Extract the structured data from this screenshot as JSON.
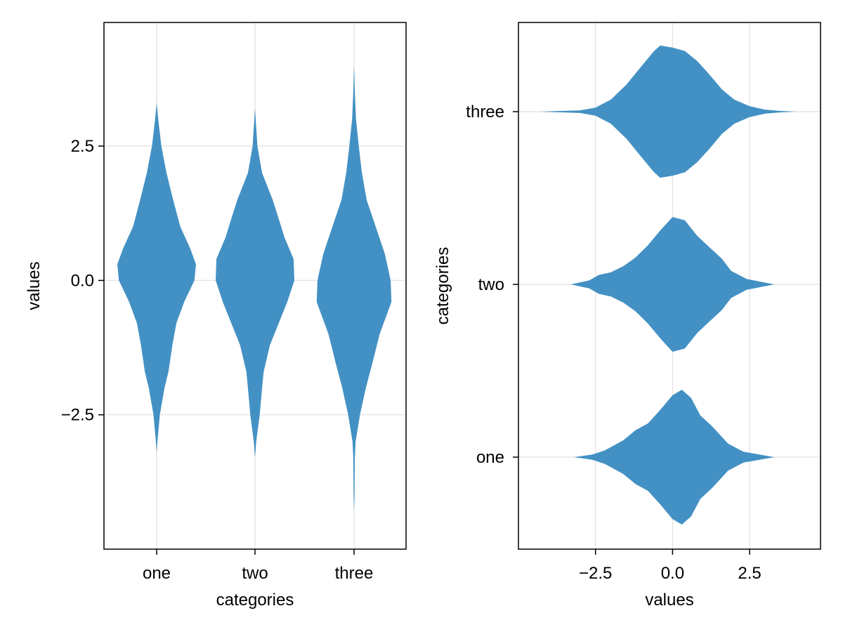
{
  "chart_data": [
    {
      "type": "violin",
      "orientation": "vertical",
      "categories": [
        "one",
        "two",
        "three"
      ],
      "xlabel": "categories",
      "ylabel": "values",
      "value_ticks": [
        -2.5,
        0.0,
        2.5
      ],
      "value_tick_labels": [
        "−2.5",
        "0.0",
        "2.5"
      ],
      "ylim": [
        -5.0,
        4.8
      ],
      "grid": true,
      "color": "#3f8fc3",
      "violins": [
        {
          "category": "one",
          "profile": [
            [
              -3.2,
              0.0
            ],
            [
              -3.0,
              0.02
            ],
            [
              -2.5,
              0.08
            ],
            [
              -2.0,
              0.2
            ],
            [
              -1.7,
              0.3
            ],
            [
              -1.2,
              0.4
            ],
            [
              -0.8,
              0.5
            ],
            [
              -0.4,
              0.7
            ],
            [
              0.0,
              0.96
            ],
            [
              0.3,
              1.0
            ],
            [
              0.6,
              0.85
            ],
            [
              1.0,
              0.6
            ],
            [
              1.5,
              0.42
            ],
            [
              2.0,
              0.25
            ],
            [
              2.5,
              0.12
            ],
            [
              3.0,
              0.04
            ],
            [
              3.3,
              0.0
            ]
          ]
        },
        {
          "category": "two",
          "profile": [
            [
              -3.3,
              0.0
            ],
            [
              -3.0,
              0.03
            ],
            [
              -2.5,
              0.12
            ],
            [
              -2.0,
              0.18
            ],
            [
              -1.7,
              0.22
            ],
            [
              -1.2,
              0.38
            ],
            [
              -0.8,
              0.6
            ],
            [
              -0.4,
              0.82
            ],
            [
              0.0,
              1.0
            ],
            [
              0.4,
              0.98
            ],
            [
              0.8,
              0.75
            ],
            [
              1.2,
              0.58
            ],
            [
              1.5,
              0.45
            ],
            [
              2.0,
              0.18
            ],
            [
              2.5,
              0.06
            ],
            [
              3.2,
              0.0
            ]
          ]
        },
        {
          "category": "three",
          "profile": [
            [
              -4.3,
              0.0
            ],
            [
              -4.0,
              0.01
            ],
            [
              -3.3,
              0.02
            ],
            [
              -3.0,
              0.04
            ],
            [
              -2.5,
              0.15
            ],
            [
              -2.0,
              0.3
            ],
            [
              -1.5,
              0.48
            ],
            [
              -1.0,
              0.65
            ],
            [
              -0.4,
              0.95
            ],
            [
              0.0,
              0.93
            ],
            [
              0.5,
              0.78
            ],
            [
              1.0,
              0.55
            ],
            [
              1.5,
              0.32
            ],
            [
              2.0,
              0.2
            ],
            [
              2.5,
              0.12
            ],
            [
              3.0,
              0.05
            ],
            [
              3.5,
              0.02
            ],
            [
              4.0,
              0.0
            ]
          ]
        }
      ]
    },
    {
      "type": "violin",
      "orientation": "horizontal",
      "categories": [
        "one",
        "two",
        "three"
      ],
      "xlabel": "values",
      "ylabel": "categories",
      "value_ticks": [
        -2.5,
        0.0,
        2.5
      ],
      "value_tick_labels": [
        "−2.5",
        "0.0",
        "2.5"
      ],
      "xlim": [
        -5.0,
        4.8
      ],
      "grid": true,
      "color": "#3f8fc3",
      "violins": [
        {
          "category": "one",
          "profile": [
            [
              -3.2,
              0.0
            ],
            [
              -2.6,
              0.04
            ],
            [
              -2.2,
              0.1
            ],
            [
              -1.6,
              0.25
            ],
            [
              -1.2,
              0.4
            ],
            [
              -0.8,
              0.5
            ],
            [
              -0.4,
              0.7
            ],
            [
              0.0,
              0.92
            ],
            [
              0.3,
              1.0
            ],
            [
              0.6,
              0.88
            ],
            [
              0.9,
              0.62
            ],
            [
              1.3,
              0.45
            ],
            [
              1.8,
              0.2
            ],
            [
              2.3,
              0.08
            ],
            [
              3.3,
              0.0
            ]
          ]
        },
        {
          "category": "two",
          "profile": [
            [
              -3.3,
              0.0
            ],
            [
              -2.7,
              0.06
            ],
            [
              -2.4,
              0.14
            ],
            [
              -2.0,
              0.18
            ],
            [
              -1.6,
              0.27
            ],
            [
              -1.2,
              0.4
            ],
            [
              -0.8,
              0.58
            ],
            [
              -0.4,
              0.8
            ],
            [
              0.0,
              1.0
            ],
            [
              0.4,
              0.95
            ],
            [
              0.8,
              0.72
            ],
            [
              1.2,
              0.55
            ],
            [
              1.6,
              0.38
            ],
            [
              1.9,
              0.2
            ],
            [
              2.4,
              0.08
            ],
            [
              3.3,
              0.0
            ]
          ]
        },
        {
          "category": "three",
          "profile": [
            [
              -4.3,
              0.0
            ],
            [
              -3.6,
              0.01
            ],
            [
              -3.0,
              0.02
            ],
            [
              -2.5,
              0.06
            ],
            [
              -2.0,
              0.18
            ],
            [
              -1.5,
              0.4
            ],
            [
              -1.0,
              0.68
            ],
            [
              -0.6,
              0.9
            ],
            [
              -0.4,
              0.98
            ],
            [
              0.0,
              0.95
            ],
            [
              0.4,
              0.9
            ],
            [
              0.8,
              0.75
            ],
            [
              1.2,
              0.55
            ],
            [
              1.6,
              0.33
            ],
            [
              2.0,
              0.18
            ],
            [
              2.5,
              0.08
            ],
            [
              3.0,
              0.03
            ],
            [
              3.5,
              0.01
            ],
            [
              4.0,
              0.0
            ]
          ]
        }
      ]
    }
  ]
}
